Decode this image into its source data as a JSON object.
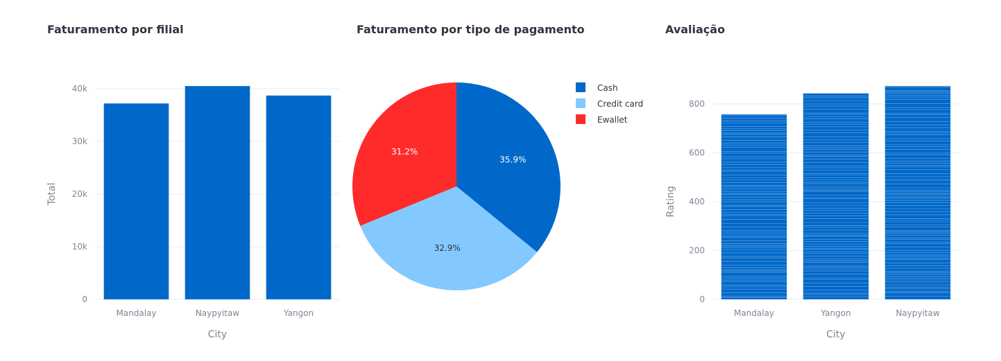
{
  "charts": {
    "revenue_by_branch": {
      "title": "Faturamento por filial"
    },
    "revenue_by_payment": {
      "title": "Faturamento por tipo de pagamento"
    },
    "rating": {
      "title": "Avaliação"
    }
  },
  "chart_data": [
    {
      "type": "bar",
      "title": "Faturamento por filial",
      "categories": [
        "Mandalay",
        "Naypyitaw",
        "Yangon"
      ],
      "values": [
        37200,
        40500,
        38700
      ],
      "xlabel": "City",
      "ylabel": "Total",
      "ylim": [
        0,
        40000
      ],
      "yticks": [
        0,
        10000,
        20000,
        30000,
        40000
      ],
      "ytick_labels": [
        "0",
        "10k",
        "20k",
        "30k",
        "40k"
      ],
      "color": "#0068c9",
      "grid": true
    },
    {
      "type": "pie",
      "title": "Faturamento por tipo de pagamento",
      "labels": [
        "Cash",
        "Credit card",
        "Ewallet"
      ],
      "values": [
        35.9,
        32.9,
        31.2
      ],
      "value_labels": [
        "35.9%",
        "32.9%",
        "31.2%"
      ],
      "colors": [
        "#0068c9",
        "#83c9ff",
        "#ff2b2b"
      ],
      "legend": "top-right"
    },
    {
      "type": "bar",
      "title": "Avaliação",
      "categories": [
        "Mandalay",
        "Yangon",
        "Naypyitaw"
      ],
      "values": [
        757,
        843,
        873
      ],
      "xlabel": "City",
      "ylabel": "Rating",
      "ylim": [
        0,
        800
      ],
      "yticks": [
        0,
        200,
        400,
        600,
        800
      ],
      "ytick_labels": [
        "0",
        "200",
        "400",
        "600",
        "800"
      ],
      "color": "#0068c9",
      "stacked_segments": true,
      "grid": true
    }
  ]
}
